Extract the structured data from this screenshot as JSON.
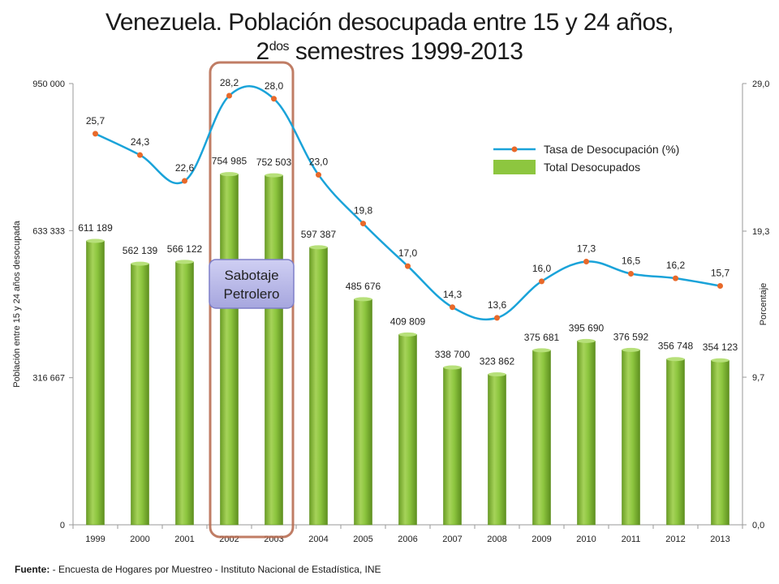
{
  "title": {
    "line1": "Venezuela. Población desocupada entre 15 y 24 años,",
    "line2_prefix": "2",
    "line2_sup": "dos",
    "line2_suffix": " semestres 1999-2013"
  },
  "source": {
    "label": "Fuente:",
    "text": " - Encuesta de Hogares por Muestreo  - Instituto Nacional de Estadística, INE"
  },
  "annotation": {
    "line1": "Sabotaje",
    "line2": "Petrolero",
    "years": [
      "2002",
      "2003"
    ]
  },
  "colors": {
    "bar": "#8dc63f",
    "bar_dark": "#5e8f1f",
    "line": "#1aa3d9",
    "marker": "#e8692a",
    "highlight_border": "#b5664a",
    "callout_fill": "#b9b9e8",
    "callout_border": "#7f7fc8"
  },
  "chart_data": {
    "type": "bar",
    "categories": [
      "1999",
      "2000",
      "2001",
      "2002",
      "2003",
      "2004",
      "2005",
      "2006",
      "2007",
      "2008",
      "2009",
      "2010",
      "2011",
      "2012",
      "2013"
    ],
    "series": [
      {
        "name": "Total Desocupados",
        "type": "bar",
        "axis": "left",
        "values": [
          611189,
          562139,
          566122,
          754985,
          752503,
          597387,
          485676,
          409809,
          338700,
          323862,
          375681,
          395690,
          376592,
          356748,
          354123
        ],
        "labels": [
          "611 189",
          "562 139",
          "566 122",
          "754 985",
          "752 503",
          "597 387",
          "485 676",
          "409 809",
          "338 700",
          "323 862",
          "375 681",
          "395 690",
          "376 592",
          "356 748",
          "354 123"
        ]
      },
      {
        "name": "Tasa de Desocupación (%)",
        "type": "line",
        "axis": "right",
        "values": [
          25.7,
          24.3,
          22.6,
          28.2,
          28.0,
          23.0,
          19.8,
          17.0,
          14.3,
          13.6,
          16.0,
          17.3,
          16.5,
          16.2,
          15.7
        ],
        "labels": [
          "25,7",
          "24,3",
          "22,6",
          "28,2",
          "28,0",
          "23,0",
          "19,8",
          "17,0",
          "14,3",
          "13,6",
          "16,0",
          "17,3",
          "16,5",
          "16,2",
          "15,7"
        ]
      }
    ],
    "ylabel": "Población entre 15 y 24 años desocupada",
    "y2label": "Porcentaje",
    "ylim": [
      0,
      950000
    ],
    "y2lim": [
      0,
      29
    ],
    "yticks": [
      0,
      316667,
      633333,
      950000
    ],
    "yticklabels": [
      "0",
      "316 667",
      "633 333",
      "950 000"
    ],
    "y2ticks": [
      0,
      9.7,
      19.3,
      29
    ],
    "y2ticklabels": [
      "0,0",
      "9,7",
      "19,3",
      "29,0"
    ],
    "legend": "right"
  }
}
